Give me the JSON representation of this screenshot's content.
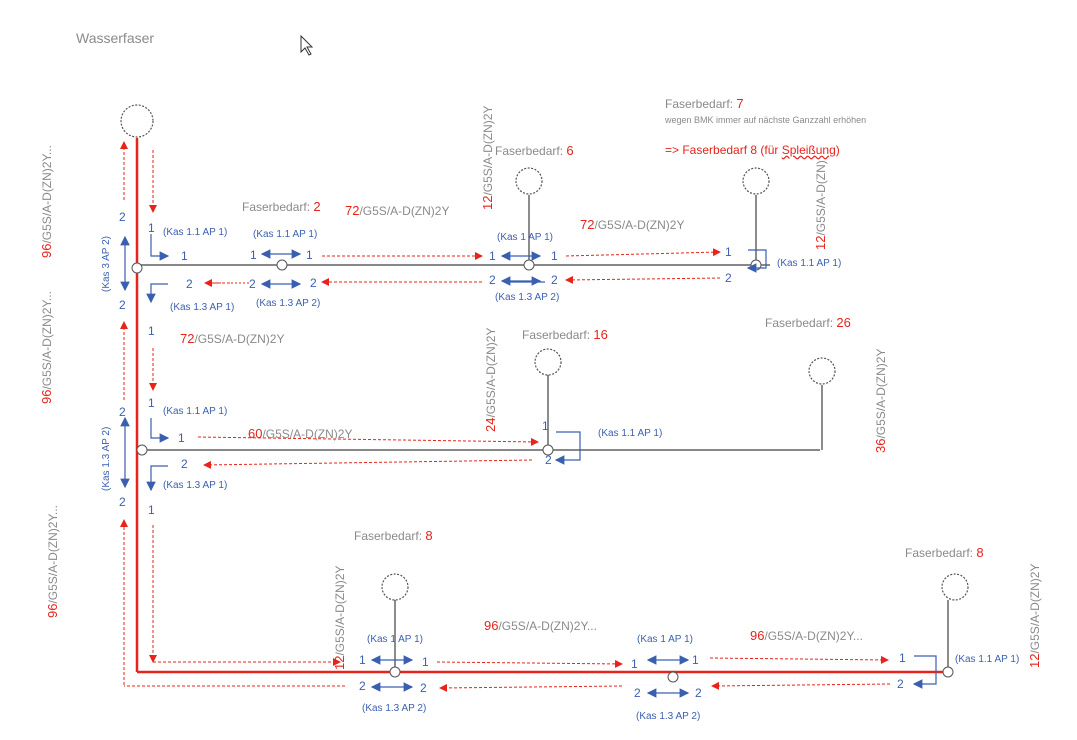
{
  "title": "Wasserfaser",
  "colors": {
    "main_line": "#e8231b",
    "arrows": "#3b5fb0",
    "cable": "#404040"
  },
  "demands": [
    {
      "label": "Faserbedarf: ",
      "value": "2"
    },
    {
      "label": "Faserbedarf: ",
      "value": "6"
    },
    {
      "label": "Faserbedarf: ",
      "value": "7"
    },
    {
      "label": "Faserbedarf: ",
      "value": "16"
    },
    {
      "label": "Faserbedarf: ",
      "value": "26"
    },
    {
      "label": "Faserbedarf: ",
      "value": "8"
    },
    {
      "label": "Faserbedarf: ",
      "value": "8"
    }
  ],
  "note": "wegen BMK immer auf nächste Ganzzahl erhöhen",
  "result": {
    "prefix": "=> Faserbedarf 8 (für ",
    "word": "Spleißung",
    "suffix": ")"
  },
  "cables": [
    {
      "n": "72",
      "rest": "/G5S/A-D(ZN)2Y"
    },
    {
      "n": "72",
      "rest": "/G5S/A-D(ZN)2Y"
    },
    {
      "n": "72",
      "rest": "/G5S/A-D(ZN)2Y"
    },
    {
      "n": "60",
      "rest": "/G5S/A-D(ZN)2Y"
    },
    {
      "n": "96",
      "rest": "/G5S/A-D(ZN)2Y..."
    },
    {
      "n": "96",
      "rest": "/G5S/A-D(ZN)2Y..."
    }
  ],
  "vcables": [
    {
      "n": "96",
      "rest": "/G5S/A-D(ZN)2Y..."
    },
    {
      "n": "96",
      "rest": "/G5S/A-D(ZN)2Y..."
    },
    {
      "n": "96",
      "rest": "/G5S/A-D(ZN)2Y..."
    },
    {
      "n": "12",
      "rest": "/G5S/A-D(ZN)2Y"
    },
    {
      "n": "12",
      "rest": "/G5S/A-D(ZN)"
    },
    {
      "n": "24",
      "rest": "/G5S/A-D(ZN)2Y"
    },
    {
      "n": "36",
      "rest": "/G5S/A-D(ZN)2Y"
    },
    {
      "n": "12",
      "rest": "/G5S/A-D(ZN)2Y"
    },
    {
      "n": "12",
      "rest": "/G5S/A-D(ZN)2Y"
    }
  ],
  "kas": {
    "k11ap1": "(Kas 1.1 AP 1)",
    "k13ap1": "(Kas 1.3 AP 1)",
    "k13ap2": "(Kas 1.3 AP 2)",
    "k1ap1": "(Kas 1 AP 1)",
    "k3ap2": "(Kas 3 AP 2)",
    "k13ap2v": "(Kas 1.3 AP 2)"
  },
  "ports": {
    "one": "1",
    "two": "2"
  }
}
